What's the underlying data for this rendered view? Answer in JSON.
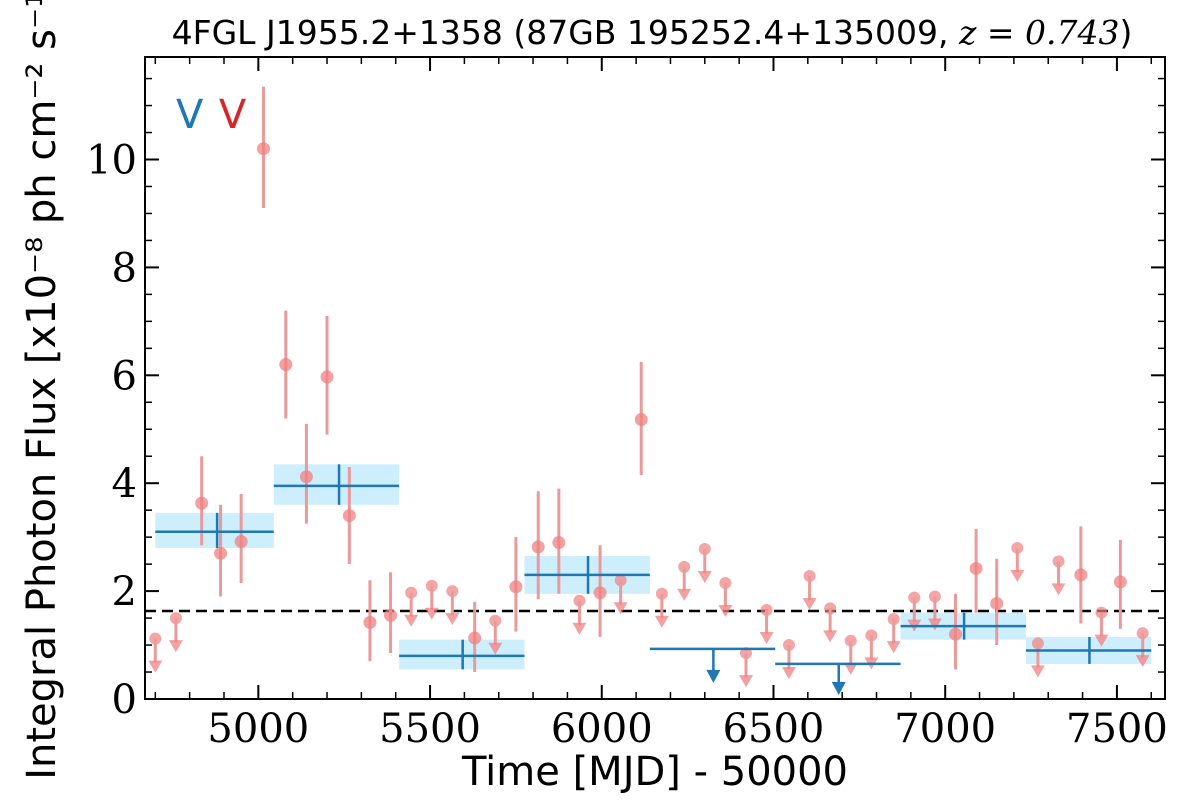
{
  "chart_data": {
    "type": "scatter",
    "title": "4FGL J1955.2+1358 (87GB 195252.4+135009, z = 0.743)",
    "title_parts": {
      "prefix": "4FGL J1955.2+1358 (87GB 195252.4+135009, ",
      "math": "z",
      "equals": " = 0.743",
      "suffix": ")"
    },
    "xlabel": "Time [MJD] - 50000",
    "ylabel": "Integral Photon Flux [x10⁻⁸ ph cm⁻² s⁻¹]",
    "xlim": [
      4670,
      7640
    ],
    "ylim": [
      0,
      11.9
    ],
    "x_ticks": [
      5000,
      5500,
      6000,
      6500,
      7000,
      7500
    ],
    "y_ticks": [
      0,
      2,
      4,
      6,
      8,
      10
    ],
    "x_tick_labels": [
      "5000",
      "5500",
      "6000",
      "6500",
      "7000",
      "7500"
    ],
    "y_tick_labels": [
      "0",
      "2",
      "4",
      "6",
      "8",
      "10"
    ],
    "average_flux": 1.63,
    "markers": [
      {
        "label": "V",
        "x": 4800,
        "color": "#1f77b4"
      },
      {
        "label": "V",
        "x": 4925,
        "color": "#d62728"
      }
    ],
    "colors": {
      "long_bins": "#1f77b4",
      "long_bins_band": "#cdeefc",
      "short_bins": "#f08080",
      "short_bins_error": "#eb9a9a",
      "average_line": "#000000"
    },
    "series": [
      {
        "name": "",
        "bin": "long",
        "detections": [
          {
            "x0": 4700,
            "x1": 5045,
            "xc": 4880,
            "y": 3.1,
            "ylo": 2.8,
            "yhi": 3.45
          },
          {
            "x0": 5045,
            "x1": 5410,
            "xc": 5235,
            "y": 3.95,
            "ylo": 3.6,
            "yhi": 4.35
          },
          {
            "x0": 5410,
            "x1": 5775,
            "xc": 5595,
            "y": 0.8,
            "ylo": 0.55,
            "yhi": 1.1
          },
          {
            "x0": 5775,
            "x1": 6140,
            "xc": 5960,
            "y": 2.3,
            "ylo": 1.95,
            "yhi": 2.65
          },
          {
            "x0": 6870,
            "x1": 7235,
            "xc": 7055,
            "y": 1.35,
            "ylo": 1.1,
            "yhi": 1.6
          },
          {
            "x0": 7235,
            "x1": 7600,
            "xc": 7420,
            "y": 0.9,
            "ylo": 0.65,
            "yhi": 1.15
          }
        ],
        "upper_limits": [
          {
            "x0": 6140,
            "x1": 6505,
            "xc": 6325,
            "y": 0.93
          },
          {
            "x0": 6505,
            "x1": 6870,
            "xc": 6690,
            "y": 0.65
          }
        ]
      },
      {
        "name": "",
        "bin": "short",
        "detections": [
          {
            "x": 4835,
            "y": 3.63,
            "ylo": 2.85,
            "yhi": 4.5
          },
          {
            "x": 4890,
            "y": 2.7,
            "ylo": 1.9,
            "yhi": 3.6
          },
          {
            "x": 4950,
            "y": 2.92,
            "ylo": 2.15,
            "yhi": 3.8
          },
          {
            "x": 5015,
            "y": 10.2,
            "ylo": 9.1,
            "yhi": 11.35
          },
          {
            "x": 5080,
            "y": 6.2,
            "ylo": 5.2,
            "yhi": 7.2
          },
          {
            "x": 5140,
            "y": 4.12,
            "ylo": 3.25,
            "yhi": 5.1
          },
          {
            "x": 5200,
            "y": 5.97,
            "ylo": 4.9,
            "yhi": 7.1
          },
          {
            "x": 5265,
            "y": 3.4,
            "ylo": 2.5,
            "yhi": 4.3
          },
          {
            "x": 5325,
            "y": 1.42,
            "ylo": 0.7,
            "yhi": 2.2
          },
          {
            "x": 5385,
            "y": 1.55,
            "ylo": 0.85,
            "yhi": 2.35
          },
          {
            "x": 5630,
            "y": 1.13,
            "ylo": 0.5,
            "yhi": 1.8
          },
          {
            "x": 5750,
            "y": 2.08,
            "ylo": 1.25,
            "yhi": 3.0
          },
          {
            "x": 5815,
            "y": 2.82,
            "ylo": 1.85,
            "yhi": 3.85
          },
          {
            "x": 5875,
            "y": 2.9,
            "ylo": 1.95,
            "yhi": 3.9
          },
          {
            "x": 5995,
            "y": 1.97,
            "ylo": 1.15,
            "yhi": 2.85
          },
          {
            "x": 6115,
            "y": 5.18,
            "ylo": 4.15,
            "yhi": 6.25
          },
          {
            "x": 7030,
            "y": 1.2,
            "ylo": 0.55,
            "yhi": 1.95
          },
          {
            "x": 7090,
            "y": 2.42,
            "ylo": 1.6,
            "yhi": 3.15
          },
          {
            "x": 7150,
            "y": 1.77,
            "ylo": 1.0,
            "yhi": 2.6
          },
          {
            "x": 7395,
            "y": 2.3,
            "ylo": 1.4,
            "yhi": 3.2
          },
          {
            "x": 7510,
            "y": 2.17,
            "ylo": 1.3,
            "yhi": 2.95
          }
        ],
        "upper_limits": [
          {
            "x": 4700,
            "y": 1.12
          },
          {
            "x": 4760,
            "y": 1.5
          },
          {
            "x": 5445,
            "y": 1.97
          },
          {
            "x": 5505,
            "y": 2.1
          },
          {
            "x": 5565,
            "y": 2.0
          },
          {
            "x": 5690,
            "y": 1.45
          },
          {
            "x": 5935,
            "y": 1.82
          },
          {
            "x": 6055,
            "y": 2.2
          },
          {
            "x": 6175,
            "y": 1.95
          },
          {
            "x": 6240,
            "y": 2.45
          },
          {
            "x": 6300,
            "y": 2.78
          },
          {
            "x": 6360,
            "y": 2.15
          },
          {
            "x": 6420,
            "y": 0.85
          },
          {
            "x": 6480,
            "y": 1.65
          },
          {
            "x": 6545,
            "y": 1.0
          },
          {
            "x": 6605,
            "y": 2.28
          },
          {
            "x": 6665,
            "y": 1.68
          },
          {
            "x": 6725,
            "y": 1.08
          },
          {
            "x": 6785,
            "y": 1.18
          },
          {
            "x": 6850,
            "y": 1.48
          },
          {
            "x": 6910,
            "y": 1.88
          },
          {
            "x": 6970,
            "y": 1.9
          },
          {
            "x": 7210,
            "y": 2.8
          },
          {
            "x": 7270,
            "y": 1.03
          },
          {
            "x": 7330,
            "y": 2.55
          },
          {
            "x": 7455,
            "y": 1.6
          },
          {
            "x": 7575,
            "y": 1.22
          }
        ]
      }
    ]
  }
}
